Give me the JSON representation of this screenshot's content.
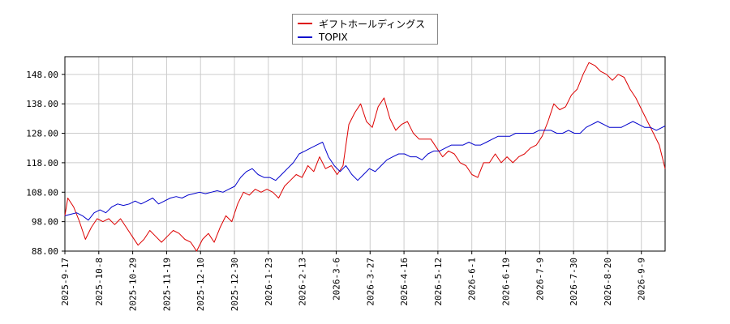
{
  "chart_data": {
    "type": "line",
    "title": "",
    "xlabel": "",
    "ylabel": "",
    "ylim": [
      88,
      154
    ],
    "yticks": [
      "88.00",
      "98.00",
      "108.00",
      "118.00",
      "128.00",
      "138.00",
      "148.00"
    ],
    "xticks": [
      "2025-9-17",
      "2025-10-8",
      "2025-10-29",
      "2025-11-19",
      "2025-12-10",
      "2025-12-30",
      "2026-1-23",
      "2026-2-13",
      "2026-3-6",
      "2026-3-27",
      "2026-4-16",
      "2026-5-12",
      "2026-6-1",
      "2026-6-19",
      "2026-7-9",
      "2026-7-30",
      "2026-8-20",
      "2026-9-9"
    ],
    "grid": true,
    "legend_position": "top-center",
    "series": [
      {
        "name": "ギフトホールディングス",
        "color": "#dd0000",
        "values": [
          [
            0,
            100
          ],
          [
            1,
            106
          ],
          [
            3,
            103
          ],
          [
            5,
            98
          ],
          [
            7,
            92
          ],
          [
            9,
            96
          ],
          [
            11,
            99
          ],
          [
            13,
            98
          ],
          [
            15,
            99
          ],
          [
            17,
            97
          ],
          [
            19,
            99
          ],
          [
            21,
            96
          ],
          [
            23,
            93
          ],
          [
            25,
            90
          ],
          [
            27,
            92
          ],
          [
            29,
            95
          ],
          [
            31,
            93
          ],
          [
            33,
            91
          ],
          [
            35,
            93
          ],
          [
            37,
            95
          ],
          [
            39,
            94
          ],
          [
            41,
            92
          ],
          [
            43,
            91
          ],
          [
            45,
            88
          ],
          [
            47,
            92
          ],
          [
            49,
            94
          ],
          [
            51,
            91
          ],
          [
            53,
            96
          ],
          [
            55,
            100
          ],
          [
            57,
            98
          ],
          [
            59,
            104
          ],
          [
            61,
            108
          ],
          [
            63,
            107
          ],
          [
            65,
            109
          ],
          [
            67,
            108
          ],
          [
            69,
            109
          ],
          [
            71,
            108
          ],
          [
            73,
            106
          ],
          [
            75,
            110
          ],
          [
            77,
            112
          ],
          [
            79,
            114
          ],
          [
            81,
            113
          ],
          [
            83,
            117
          ],
          [
            85,
            115
          ],
          [
            87,
            120
          ],
          [
            89,
            116
          ],
          [
            91,
            117
          ],
          [
            93,
            114
          ],
          [
            95,
            117
          ],
          [
            97,
            131
          ],
          [
            99,
            135
          ],
          [
            101,
            138
          ],
          [
            103,
            132
          ],
          [
            105,
            130
          ],
          [
            107,
            137
          ],
          [
            109,
            140
          ],
          [
            111,
            133
          ],
          [
            113,
            129
          ],
          [
            115,
            131
          ],
          [
            117,
            132
          ],
          [
            119,
            128
          ],
          [
            121,
            126
          ],
          [
            123,
            126
          ],
          [
            125,
            126
          ],
          [
            127,
            123
          ],
          [
            129,
            120
          ],
          [
            131,
            122
          ],
          [
            133,
            121
          ],
          [
            135,
            118
          ],
          [
            137,
            117
          ],
          [
            139,
            114
          ],
          [
            141,
            113
          ],
          [
            143,
            118
          ],
          [
            145,
            118
          ],
          [
            147,
            121
          ],
          [
            149,
            118
          ],
          [
            151,
            120
          ],
          [
            153,
            118
          ],
          [
            155,
            120
          ],
          [
            157,
            121
          ],
          [
            159,
            123
          ],
          [
            161,
            124
          ],
          [
            163,
            127
          ],
          [
            165,
            132
          ],
          [
            167,
            138
          ],
          [
            169,
            136
          ],
          [
            171,
            137
          ],
          [
            173,
            141
          ],
          [
            175,
            143
          ],
          [
            177,
            148
          ],
          [
            179,
            152
          ],
          [
            181,
            151
          ],
          [
            183,
            149
          ],
          [
            185,
            148
          ],
          [
            187,
            146
          ],
          [
            189,
            148
          ],
          [
            191,
            147
          ],
          [
            193,
            143
          ],
          [
            195,
            140
          ],
          [
            197,
            136
          ],
          [
            199,
            132
          ],
          [
            201,
            128
          ],
          [
            203,
            124
          ],
          [
            205,
            116
          ]
        ]
      },
      {
        "name": "TOPIX",
        "color": "#0000cc",
        "values": [
          [
            0,
            100
          ],
          [
            2,
            100.5
          ],
          [
            4,
            101
          ],
          [
            6,
            100
          ],
          [
            8,
            98.5
          ],
          [
            10,
            101
          ],
          [
            12,
            102
          ],
          [
            14,
            101
          ],
          [
            16,
            103
          ],
          [
            18,
            104
          ],
          [
            20,
            103.5
          ],
          [
            22,
            104
          ],
          [
            24,
            105
          ],
          [
            26,
            104
          ],
          [
            28,
            105
          ],
          [
            30,
            106
          ],
          [
            32,
            104
          ],
          [
            34,
            105
          ],
          [
            36,
            106
          ],
          [
            38,
            106.5
          ],
          [
            40,
            106
          ],
          [
            42,
            107
          ],
          [
            44,
            107.5
          ],
          [
            46,
            108
          ],
          [
            48,
            107.5
          ],
          [
            50,
            108
          ],
          [
            52,
            108.5
          ],
          [
            54,
            108
          ],
          [
            56,
            109
          ],
          [
            58,
            110
          ],
          [
            60,
            113
          ],
          [
            62,
            115
          ],
          [
            64,
            116
          ],
          [
            66,
            114
          ],
          [
            68,
            113
          ],
          [
            70,
            113
          ],
          [
            72,
            112
          ],
          [
            74,
            114
          ],
          [
            76,
            116
          ],
          [
            78,
            118
          ],
          [
            80,
            121
          ],
          [
            82,
            122
          ],
          [
            84,
            123
          ],
          [
            86,
            124
          ],
          [
            88,
            125
          ],
          [
            90,
            120
          ],
          [
            92,
            117
          ],
          [
            94,
            115
          ],
          [
            96,
            117
          ],
          [
            98,
            114
          ],
          [
            100,
            112
          ],
          [
            102,
            114
          ],
          [
            104,
            116
          ],
          [
            106,
            115
          ],
          [
            108,
            117
          ],
          [
            110,
            119
          ],
          [
            112,
            120
          ],
          [
            114,
            121
          ],
          [
            116,
            121
          ],
          [
            118,
            120
          ],
          [
            120,
            120
          ],
          [
            122,
            119
          ],
          [
            124,
            121
          ],
          [
            126,
            122
          ],
          [
            128,
            122
          ],
          [
            130,
            123
          ],
          [
            132,
            124
          ],
          [
            134,
            124
          ],
          [
            136,
            124
          ],
          [
            138,
            125
          ],
          [
            140,
            124
          ],
          [
            142,
            124
          ],
          [
            144,
            125
          ],
          [
            146,
            126
          ],
          [
            148,
            127
          ],
          [
            150,
            127
          ],
          [
            152,
            127
          ],
          [
            154,
            128
          ],
          [
            156,
            128
          ],
          [
            158,
            128
          ],
          [
            160,
            128
          ],
          [
            162,
            129
          ],
          [
            164,
            129
          ],
          [
            166,
            129
          ],
          [
            168,
            128
          ],
          [
            170,
            128
          ],
          [
            172,
            129
          ],
          [
            174,
            128
          ],
          [
            176,
            128
          ],
          [
            178,
            130
          ],
          [
            180,
            131
          ],
          [
            182,
            132
          ],
          [
            184,
            131
          ],
          [
            186,
            130
          ],
          [
            188,
            130
          ],
          [
            190,
            130
          ],
          [
            192,
            131
          ],
          [
            194,
            132
          ],
          [
            196,
            131
          ],
          [
            198,
            130
          ],
          [
            200,
            130
          ],
          [
            202,
            129
          ],
          [
            204,
            130
          ],
          [
            205,
            130.5
          ]
        ]
      }
    ]
  }
}
